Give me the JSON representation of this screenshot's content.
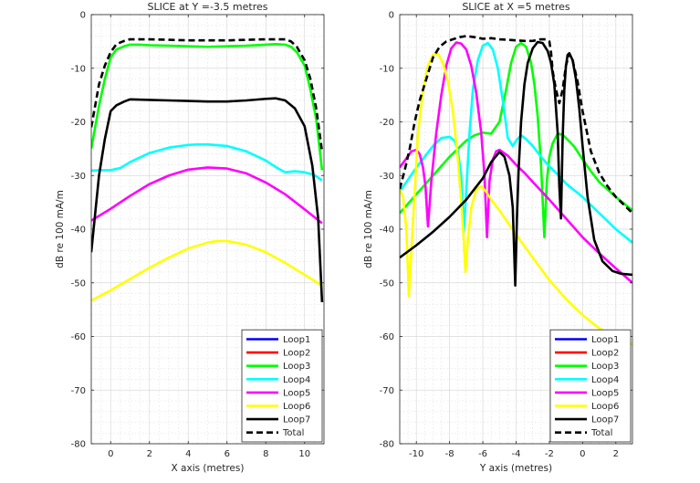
{
  "chart_data": [
    {
      "type": "line",
      "title": "SLICE at Y =-3.5 metres",
      "xlabel": "X axis (metres)",
      "ylabel": "dB re 100 mA/m",
      "xlim": [
        -1,
        11
      ],
      "ylim": [
        -80,
        0
      ],
      "xticks": [
        0,
        2,
        4,
        6,
        8,
        10
      ],
      "yticks": [
        0,
        -10,
        -20,
        -30,
        -40,
        -50,
        -60,
        -70,
        -80
      ],
      "grid": true,
      "minor_grid": true,
      "legend": "bottom-right",
      "series": [
        {
          "name": "Loop1",
          "color": "#0000ff",
          "style": "solid",
          "x": [],
          "y": []
        },
        {
          "name": "Loop2",
          "color": "#ff0000",
          "style": "solid",
          "x": [],
          "y": []
        },
        {
          "name": "Loop3",
          "color": "#00ff00",
          "style": "solid",
          "x": [
            -1,
            -0.6,
            -0.3,
            0,
            0.3,
            0.7,
            1,
            1.5,
            2,
            3,
            4,
            5,
            6,
            7,
            8,
            8.5,
            9,
            9.3,
            9.6,
            10,
            10.3,
            10.6,
            10.9
          ],
          "y": [
            -25,
            -17,
            -12,
            -8,
            -6.5,
            -5.9,
            -5.6,
            -5.6,
            -5.7,
            -5.8,
            -5.9,
            -6.0,
            -5.9,
            -5.8,
            -5.6,
            -5.5,
            -5.6,
            -6.0,
            -7.0,
            -9.5,
            -14,
            -19.5,
            -29
          ]
        },
        {
          "name": "Loop4",
          "color": "#00ffff",
          "style": "solid",
          "x": [
            -1,
            -0.5,
            0,
            0.5,
            1,
            2,
            3,
            4,
            4.5,
            5,
            6,
            7,
            8,
            8.5,
            9,
            9.5,
            10,
            10.5,
            10.9
          ],
          "y": [
            -29.1,
            -29.0,
            -29.0,
            -28.6,
            -27.5,
            -25.8,
            -24.8,
            -24.3,
            -24.2,
            -24.2,
            -24.5,
            -25.5,
            -27.2,
            -28.4,
            -29.4,
            -29.2,
            -29.4,
            -29.9,
            -30.9
          ]
        },
        {
          "name": "Loop5",
          "color": "#ff00ff",
          "style": "solid",
          "x": [
            -1,
            0,
            1,
            2,
            3,
            4,
            5,
            6,
            7,
            8,
            9,
            10,
            10.9
          ],
          "y": [
            -38.4,
            -36.2,
            -33.8,
            -31.6,
            -30.0,
            -28.9,
            -28.5,
            -28.7,
            -29.6,
            -31.3,
            -33.5,
            -36.3,
            -38.9
          ]
        },
        {
          "name": "Loop6",
          "color": "#ffff00",
          "style": "solid",
          "x": [
            -1,
            0,
            1,
            2,
            3,
            4,
            5,
            5.5,
            6,
            7,
            8,
            9,
            10,
            10.9
          ],
          "y": [
            -53.3,
            -51.4,
            -49.3,
            -47.2,
            -45.3,
            -43.6,
            -42.5,
            -42.2,
            -42.2,
            -42.9,
            -44.3,
            -46.3,
            -48.5,
            -50.5
          ]
        },
        {
          "name": "Loop7",
          "color": "#000000",
          "style": "solid",
          "x": [
            -1,
            -0.6,
            -0.3,
            0,
            0.3,
            0.7,
            1,
            2,
            3,
            4,
            5,
            6,
            7,
            8,
            8.5,
            9,
            9.5,
            10,
            10.4,
            10.7,
            10.9
          ],
          "y": [
            -44.3,
            -30,
            -23.2,
            -18,
            -16.9,
            -16.2,
            -15.8,
            -15.9,
            -16.0,
            -16.1,
            -16.2,
            -16.2,
            -16.0,
            -15.7,
            -15.6,
            -16.0,
            -17.5,
            -20.8,
            -28.2,
            -38,
            -53.6
          ]
        },
        {
          "name": "Total",
          "color": "#000000",
          "style": "dashed",
          "x": [
            -1,
            -0.6,
            -0.3,
            0,
            0.3,
            0.7,
            1,
            2,
            3,
            4,
            5,
            6,
            7,
            8,
            9,
            9.3,
            9.6,
            10,
            10.3,
            10.6,
            10.9
          ],
          "y": [
            -21,
            -13,
            -9.5,
            -7,
            -5.5,
            -4.9,
            -4.6,
            -4.6,
            -4.7,
            -4.8,
            -4.8,
            -4.8,
            -4.7,
            -4.6,
            -4.6,
            -5.0,
            -6.0,
            -8.5,
            -12,
            -17.5,
            -25.5
          ]
        }
      ]
    },
    {
      "type": "line",
      "title": "SLICE at X =5 metres",
      "xlabel": "Y axis (metres)",
      "ylabel": "dB re 100 mA/m",
      "xlim": [
        -11,
        3
      ],
      "ylim": [
        -80,
        0
      ],
      "xticks": [
        -10,
        -8,
        -6,
        -4,
        -2,
        0,
        2
      ],
      "yticks": [
        0,
        -10,
        -20,
        -30,
        -40,
        -50,
        -60,
        -70,
        -80
      ],
      "grid": true,
      "minor_grid": true,
      "legend": "bottom-right",
      "series": [
        {
          "name": "Loop1",
          "color": "#0000ff",
          "style": "solid",
          "x": [],
          "y": []
        },
        {
          "name": "Loop2",
          "color": "#ff0000",
          "style": "solid",
          "x": [],
          "y": []
        },
        {
          "name": "Loop3",
          "color": "#00ff00",
          "style": "solid",
          "x": [
            -11,
            -10,
            -9,
            -8,
            -7,
            -6.5,
            -6,
            -5.5,
            -5,
            -4.6,
            -4.3,
            -4,
            -3.7,
            -3.4,
            -3.1,
            -2.9,
            -2.7,
            -2.5,
            -2.3,
            -2.15,
            -2.0,
            -1.8,
            -1.5,
            -1.2,
            -1.0,
            -0.5,
            0,
            0.5,
            1,
            2,
            3
          ],
          "y": [
            -37,
            -33.5,
            -30,
            -26.5,
            -23.5,
            -22.5,
            -22,
            -22.2,
            -20,
            -14,
            -9,
            -6,
            -5.3,
            -6,
            -9,
            -13,
            -19,
            -28,
            -41.5,
            -31,
            -26.5,
            -24,
            -22.2,
            -22.4,
            -23,
            -24.6,
            -27,
            -29.2,
            -31.2,
            -34,
            -36.5
          ]
        },
        {
          "name": "Loop4",
          "color": "#00ffff",
          "style": "solid",
          "x": [
            -11,
            -10,
            -9,
            -8.5,
            -8,
            -7.7,
            -7.5,
            -7.3,
            -7.15,
            -7.0,
            -6.8,
            -6.6,
            -6.3,
            -6.0,
            -5.7,
            -5.4,
            -5.1,
            -4.8,
            -4.5,
            -4.2,
            -4.0,
            -3.7,
            -3.4,
            -3.0,
            -2.5,
            -2,
            -1.5,
            -1,
            0,
            1,
            2,
            3
          ],
          "y": [
            -33,
            -28.5,
            -24.5,
            -23,
            -22.8,
            -23.5,
            -25.5,
            -30,
            -40.5,
            -33,
            -22,
            -14,
            -8.5,
            -5.8,
            -5.3,
            -6.5,
            -10,
            -16,
            -23,
            -24.5,
            -23.5,
            -22.5,
            -23.2,
            -24.5,
            -26.5,
            -28.3,
            -29.8,
            -31.5,
            -34,
            -37,
            -40,
            -42.5
          ]
        },
        {
          "name": "Loop5",
          "color": "#ff00ff",
          "style": "solid",
          "x": [
            -11,
            -10.6,
            -10.3,
            -10,
            -9.8,
            -9.6,
            -9.45,
            -9.3,
            -9.1,
            -8.8,
            -8.5,
            -8.2,
            -7.9,
            -7.6,
            -7.3,
            -7.0,
            -6.7,
            -6.4,
            -6.1,
            -5.9,
            -5.75,
            -5.6,
            -5.4,
            -5.2,
            -5.0,
            -4.5,
            -4,
            -3.5,
            -3,
            -2,
            -1,
            0,
            1,
            2,
            3
          ],
          "y": [
            -28.5,
            -26.8,
            -25.5,
            -25.2,
            -26.0,
            -28.5,
            -32,
            -39.5,
            -31,
            -22,
            -15,
            -9.5,
            -6.3,
            -5.2,
            -5.4,
            -6.5,
            -9.5,
            -14.5,
            -22,
            -30,
            -41.5,
            -31,
            -27,
            -25.5,
            -25.2,
            -26.3,
            -28,
            -29.5,
            -31.2,
            -34.5,
            -38,
            -41.5,
            -44.5,
            -47.3,
            -50
          ]
        },
        {
          "name": "Loop6",
          "color": "#ffff00",
          "style": "solid",
          "x": [
            -11,
            -10.8,
            -10.6,
            -10.45,
            -10.3,
            -10.1,
            -9.9,
            -9.6,
            -9.3,
            -9.0,
            -8.7,
            -8.4,
            -8.1,
            -7.8,
            -7.5,
            -7.3,
            -7.15,
            -7.05,
            -6.9,
            -6.7,
            -6.4,
            -6.1,
            -5.8,
            -5.5,
            -5,
            -4,
            -3,
            -2,
            -1,
            0,
            1,
            2,
            3
          ],
          "y": [
            -32.5,
            -34,
            -40,
            -52.5,
            -44,
            -33,
            -22,
            -14,
            -9.5,
            -7.5,
            -7.3,
            -9,
            -12.5,
            -18,
            -27,
            -35,
            -42,
            -48,
            -42,
            -36,
            -32.6,
            -32,
            -33,
            -34.5,
            -36.5,
            -41,
            -45.3,
            -49.5,
            -53,
            -56,
            -58.5,
            -60,
            -61.5
          ]
        },
        {
          "name": "Loop7",
          "color": "#000000",
          "style": "solid",
          "x": [
            -11,
            -10,
            -9,
            -8,
            -7,
            -6,
            -5.5,
            -5.0,
            -4.7,
            -4.4,
            -4.2,
            -4.05,
            -3.95,
            -3.85,
            -3.7,
            -3.5,
            -3.3,
            -3.0,
            -2.7,
            -2.4,
            -2.1,
            -1.9,
            -1.7,
            -1.5,
            -1.4,
            -1.3,
            -1.2,
            -1.1,
            -1.0,
            -0.9,
            -0.8,
            -0.6,
            -0.4,
            -0.2,
            0,
            0.3,
            0.7,
            1.2,
            1.8,
            2.3,
            3
          ],
          "y": [
            -45.3,
            -43,
            -40.5,
            -37.7,
            -34.5,
            -30.5,
            -27.5,
            -25.6,
            -26.5,
            -30,
            -36,
            -50.5,
            -38,
            -29,
            -20,
            -13,
            -9,
            -6.3,
            -5.1,
            -5.3,
            -6.8,
            -9,
            -13,
            -22,
            -32,
            -38,
            -23,
            -14,
            -9.5,
            -7.5,
            -7.2,
            -8.5,
            -12,
            -17.5,
            -24.5,
            -34,
            -42,
            -46,
            -47.8,
            -48.3,
            -48.5
          ]
        },
        {
          "name": "Total",
          "color": "#000000",
          "style": "dashed",
          "x": [
            -11,
            -10.7,
            -10.4,
            -10.1,
            -9.8,
            -9.4,
            -9.0,
            -8.6,
            -8.2,
            -7.8,
            -7.4,
            -7.0,
            -6.5,
            -6.0,
            -5.5,
            -5.0,
            -4.5,
            -4.0,
            -3.5,
            -3.0,
            -2.5,
            -2.2,
            -2.0,
            -1.9,
            -1.8,
            -1.6,
            -1.4,
            -1.2,
            -1.0,
            -0.8,
            -0.6,
            -0.3,
            0,
            0.5,
            1,
            1.5,
            2,
            2.5,
            3
          ],
          "y": [
            -32.5,
            -29,
            -25,
            -20,
            -16,
            -12,
            -8,
            -6,
            -5,
            -4.6,
            -4.2,
            -4.0,
            -4.2,
            -4.5,
            -4.4,
            -4.6,
            -4.7,
            -4.8,
            -4.9,
            -4.9,
            -4.6,
            -4.6,
            -5,
            -7,
            -10.5,
            -14,
            -16.5,
            -14,
            -9.5,
            -7.3,
            -8.5,
            -12.5,
            -18,
            -25.5,
            -29.5,
            -32,
            -34,
            -35.5,
            -37
          ]
        }
      ]
    }
  ]
}
